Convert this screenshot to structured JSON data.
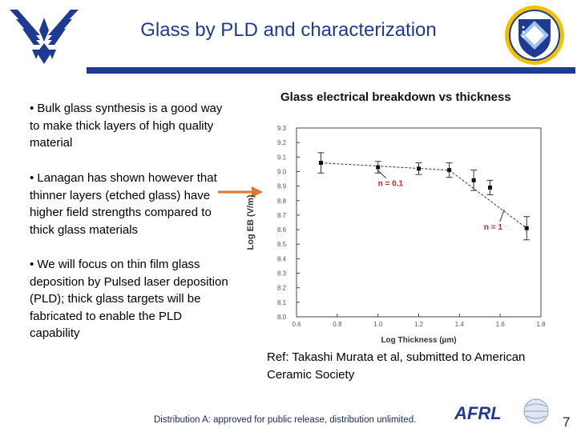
{
  "slide": {
    "title": "Glass by PLD and characterization",
    "bullets": [
      "• Bulk glass synthesis is a good way to make thick layers of high quality material",
      "• Lanagan has shown however that thinner layers (etched glass) have higher field strengths compared to thick glass materials",
      "• We will focus on thin film glass deposition by Pulsed laser deposition (PLD); thick glass targets will be fabricated to enable the PLD capability"
    ],
    "reference": "Ref: Takashi Murata et al, submitted to American Ceramic Society",
    "footer": "Distribution A: approved for public release, distribution unlimited.",
    "page_number": "7",
    "logos": {
      "left": "air-force-wings-logo",
      "right": "afrl-shield-logo",
      "bottom": "AFRL"
    },
    "arrow_color": "#e8742a",
    "accent_color": "#1f3a93"
  },
  "chart_data": {
    "type": "scatter",
    "title": "Glass electrical breakdown vs thickness",
    "xlabel": "Log Thickness (µm)",
    "ylabel": "Log EB (V/m)",
    "xlim": [
      0.6,
      1.8
    ],
    "ylim": [
      8.0,
      9.3
    ],
    "xticks": [
      "0.6",
      "0.8",
      "1.0",
      "1.2",
      "1.4",
      "1.6",
      "1.8"
    ],
    "yticks": [
      "9.3",
      "9.2",
      "9.1",
      "9.0",
      "8.9",
      "8.8",
      "8.7",
      "8.6",
      "8.5",
      "8.4",
      "8.3",
      "8.2",
      "8.1",
      "8.0"
    ],
    "points": [
      {
        "x": 0.72,
        "y": 9.06,
        "err": 0.07
      },
      {
        "x": 1.0,
        "y": 9.03,
        "err": 0.04
      },
      {
        "x": 1.2,
        "y": 9.02,
        "err": 0.04
      },
      {
        "x": 1.35,
        "y": 9.01,
        "err": 0.05
      },
      {
        "x": 1.47,
        "y": 8.94,
        "err": 0.07
      },
      {
        "x": 1.55,
        "y": 8.89,
        "err": 0.05
      },
      {
        "x": 1.73,
        "y": 8.61,
        "err": 0.08
      }
    ],
    "fit_lines": [
      {
        "label": "n = 0.1",
        "from": [
          0.72,
          9.06
        ],
        "to": [
          1.35,
          9.01
        ],
        "label_at": [
          1.0,
          8.9
        ]
      },
      {
        "label": "n = 1",
        "from": [
          1.35,
          9.01
        ],
        "to": [
          1.73,
          8.61
        ],
        "label_at": [
          1.52,
          8.6
        ]
      }
    ],
    "label_color": "#cc2222"
  }
}
